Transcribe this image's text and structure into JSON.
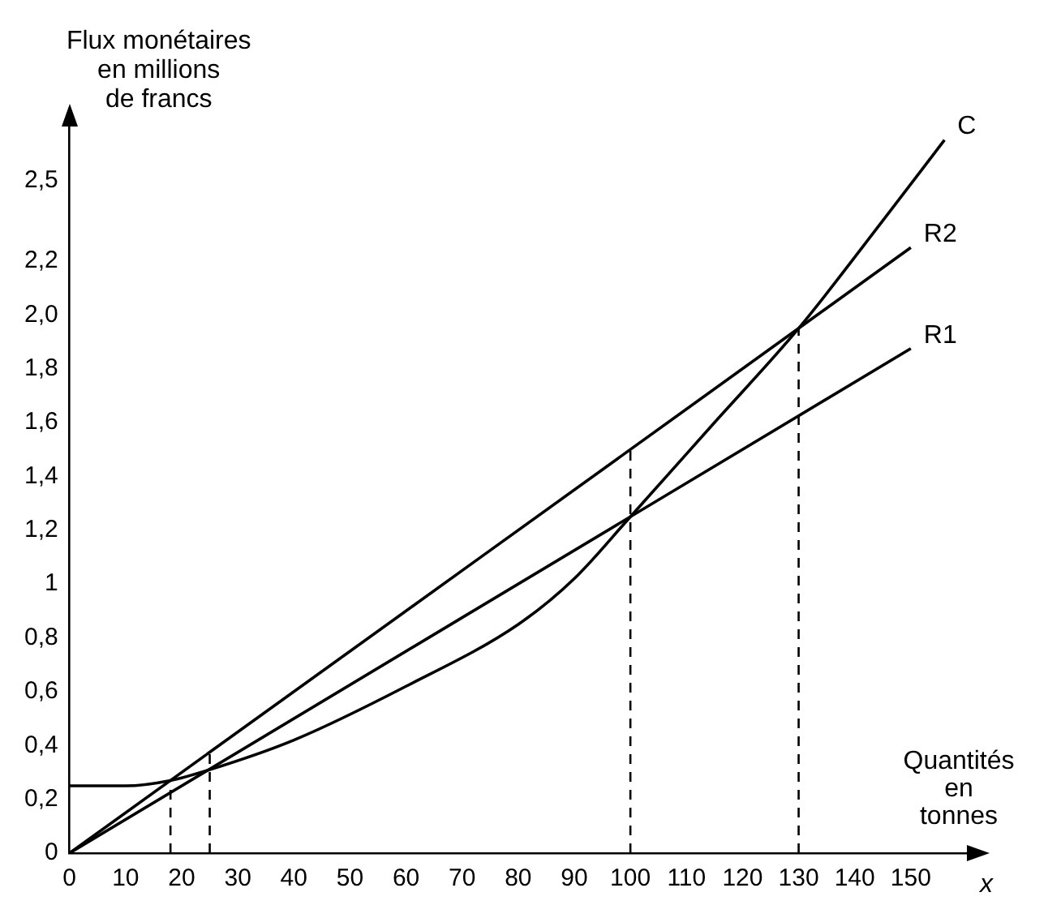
{
  "chart_data": {
    "type": "line",
    "ylabel": "Flux monétaires en millions de francs",
    "xlabel": "Quantités en tonnes",
    "annotations": [
      "x"
    ],
    "xlim": [
      0,
      160
    ],
    "ylim": [
      0,
      2.7
    ],
    "xticks": [
      0,
      10,
      20,
      30,
      40,
      50,
      60,
      70,
      80,
      90,
      100,
      110,
      120,
      130,
      140,
      150
    ],
    "yticks": [
      0,
      {
        "value": 0.2,
        "label": "0,2"
      },
      {
        "value": 0.4,
        "label": "0,4"
      },
      {
        "value": 0.6,
        "label": "0,6"
      },
      {
        "value": 0.8,
        "label": "0,8"
      },
      1,
      {
        "value": 1.2,
        "label": "1,2"
      },
      {
        "value": 1.4,
        "label": "1,4"
      },
      {
        "value": 1.6,
        "label": "1,6"
      },
      {
        "value": 1.8,
        "label": "1,8"
      },
      {
        "value": 2.0,
        "label": "2,0"
      },
      {
        "value": 2.2,
        "label": "2,2"
      },
      {
        "value": 2.5,
        "label": "2,5"
      }
    ],
    "grid": false,
    "legend": false,
    "marker": "none",
    "line_style": "solid",
    "series": [
      {
        "name": "C",
        "color": "#000000",
        "x": [
          0,
          10,
          18,
          25,
          40,
          60,
          80,
          90,
          100,
          115,
          130,
          145,
          156
        ],
        "values": [
          0.25,
          0.25,
          0.27,
          0.31,
          0.42,
          0.62,
          0.85,
          1.02,
          1.25,
          1.6,
          1.95,
          2.35,
          2.65
        ]
      },
      {
        "name": "R2",
        "color": "#000000",
        "x": [
          0,
          150
        ],
        "values": [
          0,
          2.25
        ]
      },
      {
        "name": "R1",
        "color": "#000000",
        "x": [
          0,
          150
        ],
        "values": [
          0,
          1.875
        ]
      }
    ],
    "ref_lines": [
      {
        "axis": "x",
        "value": 18,
        "line_style": "dashed"
      },
      {
        "axis": "x",
        "value": 25,
        "line_style": "dashed"
      },
      {
        "axis": "x",
        "value": 100,
        "line_style": "dashed"
      },
      {
        "axis": "x",
        "value": 130,
        "line_style": "dashed"
      }
    ]
  }
}
